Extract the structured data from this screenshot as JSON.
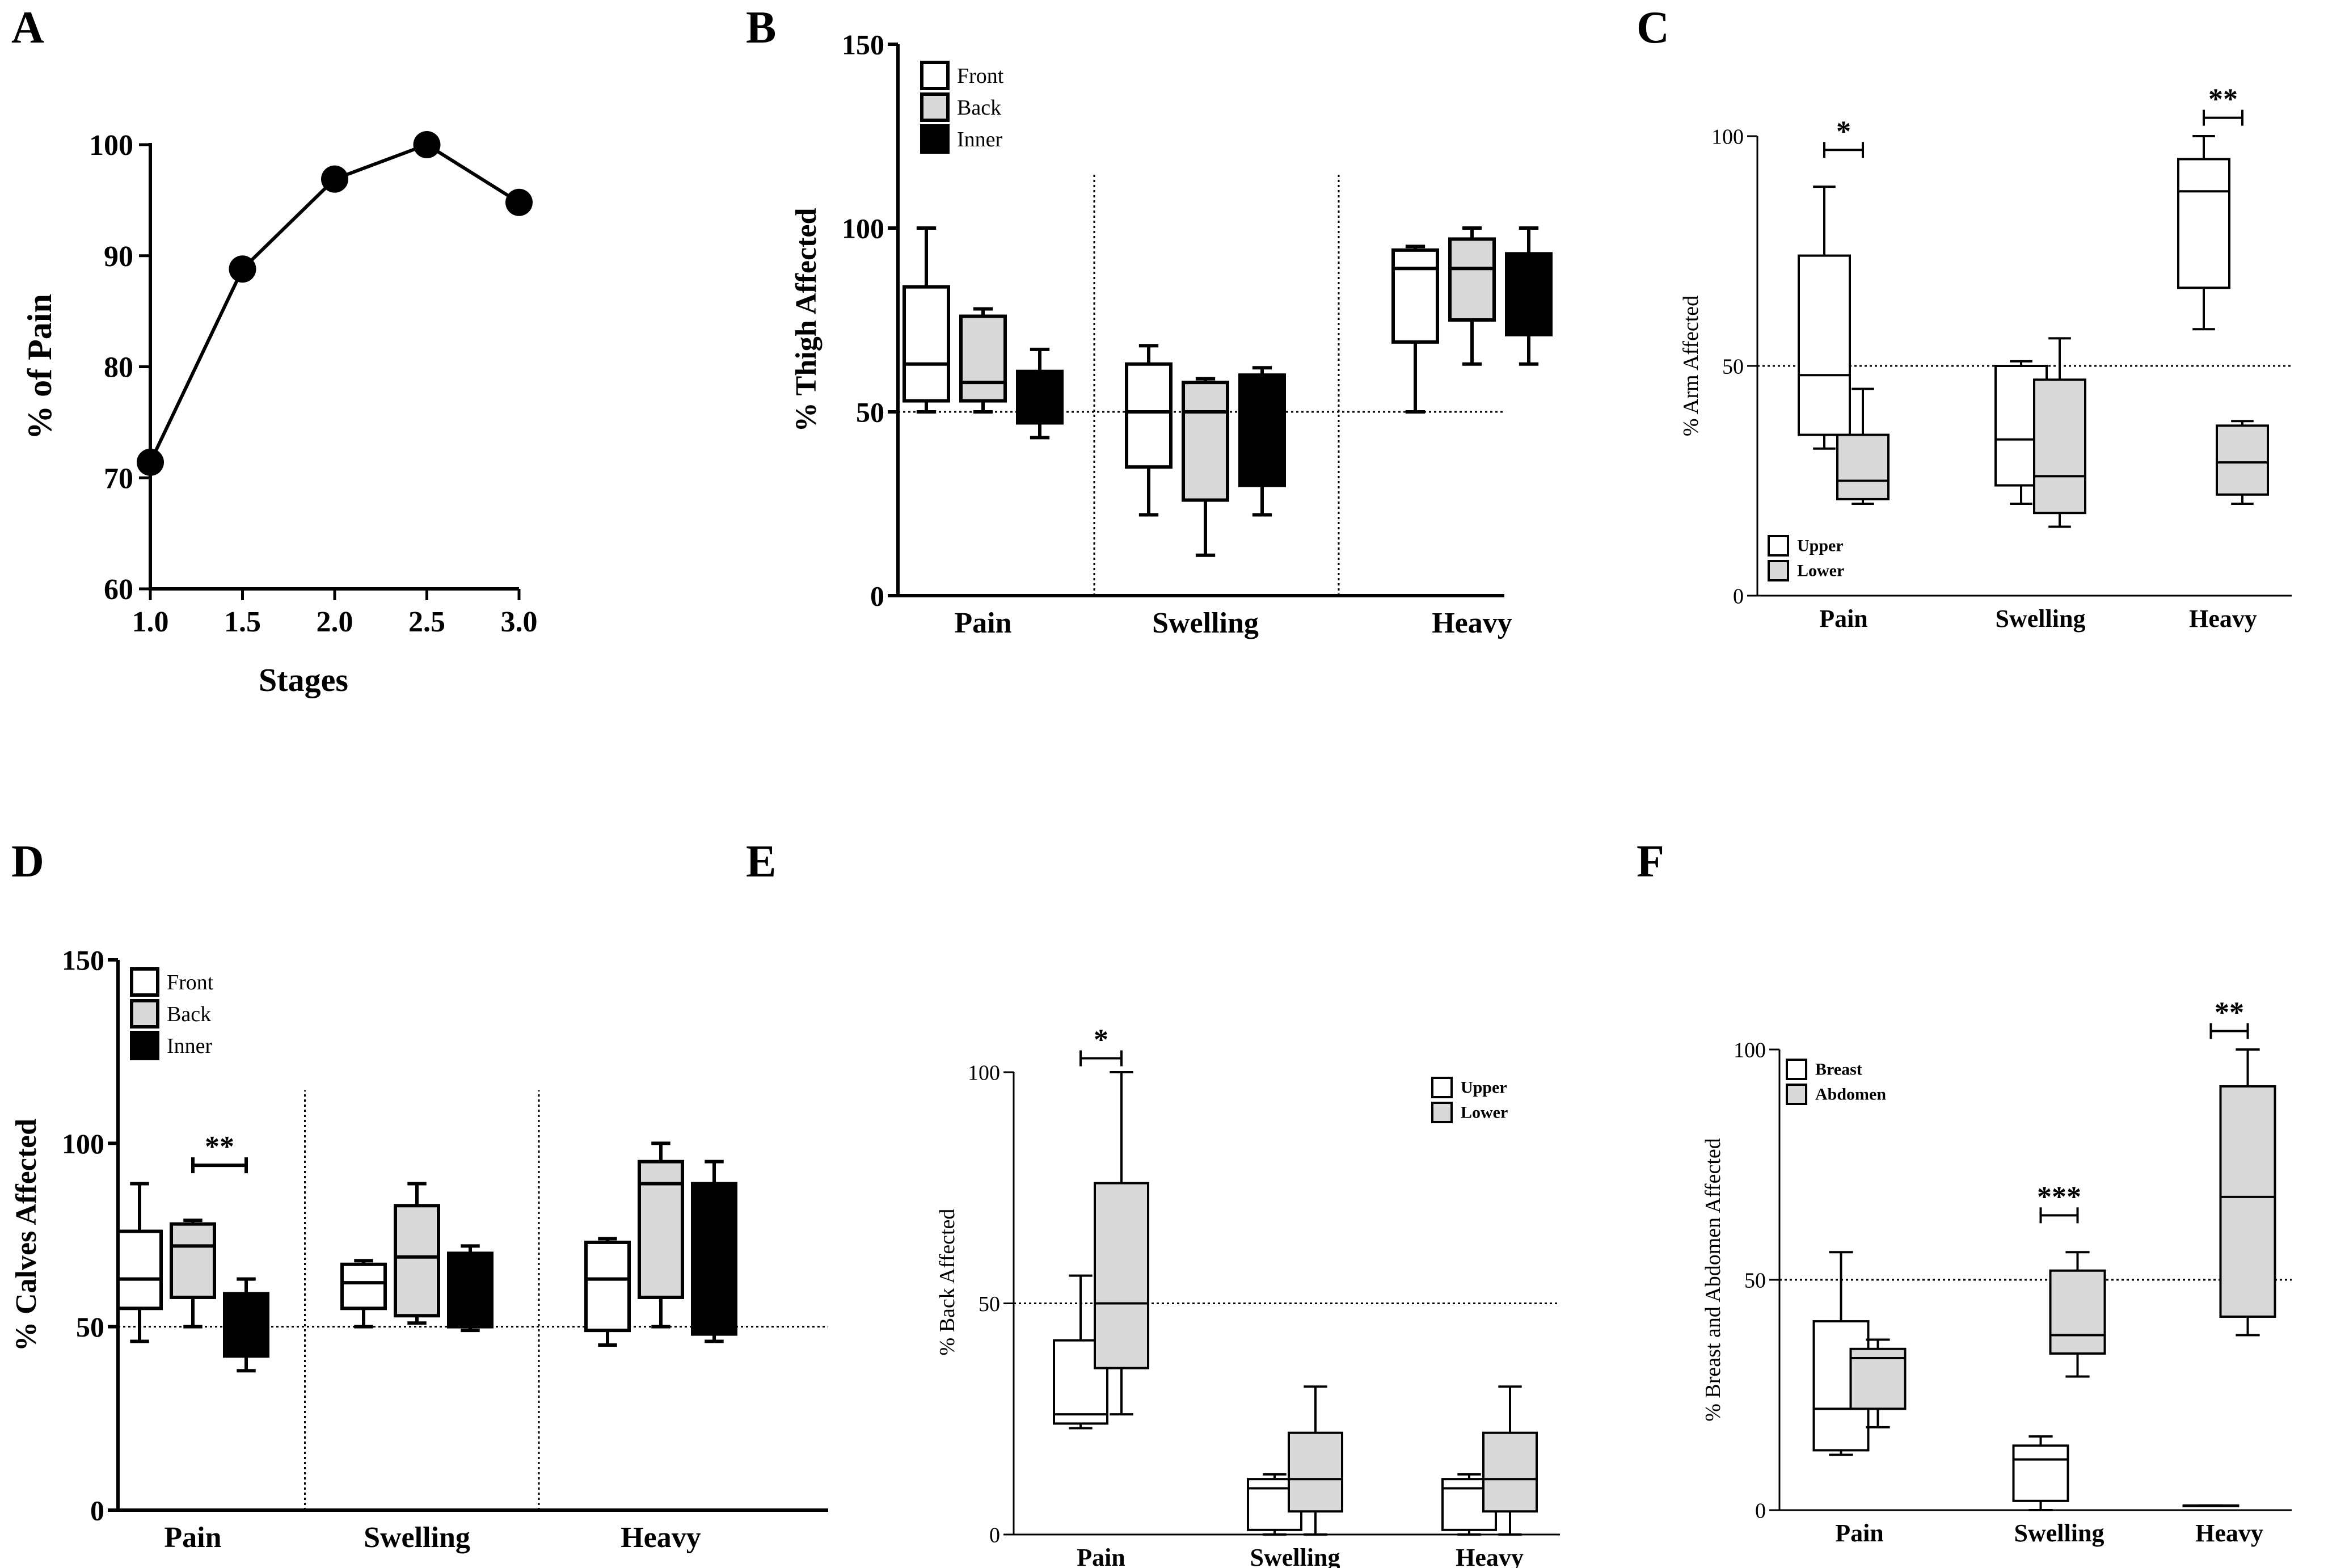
{
  "figure": {
    "chart_data": [
      {
        "panel": "A",
        "type": "line",
        "xlabel": "Stages",
        "ylabel": "% of Pain",
        "xlim": [
          1.0,
          3.0
        ],
        "ylim": [
          60,
          100
        ],
        "xticks": [
          1.0,
          1.5,
          2.0,
          2.5,
          3.0
        ],
        "xtick_labels": [
          "1.0",
          "1.5",
          "2.0",
          "2.5",
          "3.0"
        ],
        "yticks": [
          60,
          70,
          80,
          90,
          100
        ],
        "ytick_labels": [
          "60",
          "70",
          "80",
          "90",
          "100"
        ],
        "x": [
          1.0,
          1.5,
          2.0,
          2.5,
          3.0
        ],
        "y": [
          71.4,
          88.8,
          96.9,
          100,
          94.8
        ]
      },
      {
        "panel": "B",
        "type": "box",
        "ylabel": "% Thigh Affected",
        "ylim": [
          0,
          150
        ],
        "yticks": [
          0,
          50,
          100,
          150
        ],
        "ytick_labels": [
          "0",
          "50",
          "100",
          "150"
        ],
        "categories": [
          "Pain",
          "Swelling",
          "Heavy"
        ],
        "legend": {
          "position": "top-left",
          "entries": [
            {
              "label": "Front",
              "color": "#ffffff"
            },
            {
              "label": "Back",
              "color": "#d9d9d9"
            },
            {
              "label": "Inner",
              "color": "#000000"
            }
          ]
        },
        "reference_line": 50,
        "series": [
          {
            "name": "Front",
            "color": "#ffffff",
            "boxes": [
              [
                50,
                53,
                63,
                84,
                100
              ],
              [
                22,
                35,
                50,
                63,
                68
              ],
              [
                50,
                69,
                89,
                94,
                95
              ]
            ]
          },
          {
            "name": "Back",
            "color": "#d9d9d9",
            "boxes": [
              [
                50,
                53,
                58,
                76,
                78
              ],
              [
                11,
                26,
                50,
                58,
                59
              ],
              [
                63,
                75,
                89,
                97,
                100
              ]
            ]
          },
          {
            "name": "Inner",
            "color": "#000000",
            "boxes": [
              [
                43,
                47,
                51,
                61,
                67
              ],
              [
                22,
                30,
                35,
                60,
                62
              ],
              [
                63,
                71,
                83,
                93,
                100
              ]
            ]
          }
        ],
        "significance": []
      },
      {
        "panel": "C",
        "type": "box",
        "ylabel": "% Arm Affected",
        "ylim": [
          0,
          100
        ],
        "yticks": [
          0,
          50,
          100
        ],
        "ytick_labels": [
          "0",
          "50",
          "100"
        ],
        "categories": [
          "Pain",
          "Swelling",
          "Heavy"
        ],
        "legend": {
          "position": "bottom-left",
          "entries": [
            {
              "label": "Upper",
              "color": "#ffffff"
            },
            {
              "label": "Lower",
              "color": "#d9d9d9"
            }
          ]
        },
        "reference_line": 50,
        "series": [
          {
            "name": "Upper",
            "color": "#ffffff",
            "boxes": [
              [
                32,
                35,
                48,
                74,
                89
              ],
              [
                20,
                24,
                34,
                50,
                51
              ],
              [
                58,
                67,
                88,
                95,
                100
              ]
            ]
          },
          {
            "name": "Lower",
            "color": "#d9d9d9",
            "boxes": [
              [
                20,
                21,
                25,
                35,
                45
              ],
              [
                15,
                18,
                26,
                47,
                56
              ],
              [
                20,
                22,
                29,
                37,
                38
              ]
            ]
          }
        ],
        "significance": [
          {
            "category": 0,
            "label": "*",
            "y": 97
          },
          {
            "category": 2,
            "label": "**",
            "y": 104
          }
        ]
      },
      {
        "panel": "D",
        "type": "box",
        "ylabel": "% Calves Affected",
        "ylim": [
          0,
          150
        ],
        "yticks": [
          0,
          50,
          100,
          150
        ],
        "ytick_labels": [
          "0",
          "50",
          "100",
          "150"
        ],
        "categories": [
          "Pain",
          "Swelling",
          "Heavy"
        ],
        "legend": {
          "position": "top-left",
          "entries": [
            {
              "label": "Front",
              "color": "#ffffff"
            },
            {
              "label": "Back",
              "color": "#d9d9d9"
            },
            {
              "label": "Inner",
              "color": "#000000"
            }
          ]
        },
        "reference_line": 50,
        "series": [
          {
            "name": "Front",
            "color": "#ffffff",
            "boxes": [
              [
                46,
                55,
                63,
                76,
                89
              ],
              [
                50,
                55,
                62,
                67,
                68
              ],
              [
                45,
                49,
                63,
                73,
                74
              ]
            ]
          },
          {
            "name": "Back",
            "color": "#d9d9d9",
            "boxes": [
              [
                50,
                58,
                72,
                78,
                79
              ],
              [
                51,
                53,
                69,
                83,
                89
              ],
              [
                50,
                58,
                89,
                95,
                100
              ]
            ]
          },
          {
            "name": "Inner",
            "color": "#000000",
            "boxes": [
              [
                38,
                42,
                51,
                59,
                63
              ],
              [
                49,
                50,
                59,
                70,
                72
              ],
              [
                46,
                48,
                77,
                89,
                95
              ]
            ]
          }
        ],
        "significance": [
          {
            "category": 0,
            "between": [
              1,
              2
            ],
            "label": "**",
            "y": 94
          }
        ]
      },
      {
        "panel": "E",
        "type": "box",
        "ylabel": "% Back Affected",
        "ylim": [
          0,
          100
        ],
        "yticks": [
          0,
          50,
          100
        ],
        "ytick_labels": [
          "0",
          "50",
          "100"
        ],
        "categories": [
          "Pain",
          "Swelling",
          "Heavy"
        ],
        "legend": {
          "position": "top-right",
          "entries": [
            {
              "label": "Upper",
              "color": "#ffffff"
            },
            {
              "label": "Lower",
              "color": "#d9d9d9"
            }
          ]
        },
        "reference_line": 50,
        "series": [
          {
            "name": "Upper",
            "color": "#ffffff",
            "boxes": [
              [
                23,
                24,
                26,
                42,
                56
              ],
              [
                0,
                1,
                10,
                12,
                13
              ],
              [
                0,
                1,
                10,
                12,
                13
              ]
            ]
          },
          {
            "name": "Lower",
            "color": "#d9d9d9",
            "boxes": [
              [
                26,
                36,
                50,
                76,
                100
              ],
              [
                0,
                5,
                12,
                22,
                32
              ],
              [
                0,
                5,
                12,
                22,
                32
              ]
            ]
          }
        ],
        "significance": [
          {
            "category": 0,
            "label": "*",
            "y": 103
          }
        ]
      },
      {
        "panel": "F",
        "type": "box",
        "ylabel": "% Breast and Abdomen Affected",
        "ylim": [
          0,
          100
        ],
        "yticks": [
          0,
          50,
          100
        ],
        "ytick_labels": [
          "0",
          "50",
          "100"
        ],
        "categories": [
          "Pain",
          "Swelling",
          "Heavy"
        ],
        "legend": {
          "position": "top-left",
          "entries": [
            {
              "label": "Breast",
              "color": "#ffffff"
            },
            {
              "label": "Abdomen",
              "color": "#d9d9d9"
            }
          ]
        },
        "reference_line": 50,
        "series": [
          {
            "name": "Breast",
            "color": "#ffffff",
            "boxes": [
              [
                12,
                13,
                22,
                41,
                56
              ],
              [
                0,
                2,
                11,
                14,
                16
              ],
              [
                1,
                1,
                1,
                1,
                1
              ]
            ]
          },
          {
            "name": "Abdomen",
            "color": "#d9d9d9",
            "boxes": [
              [
                18,
                22,
                33,
                35,
                37
              ],
              [
                29,
                34,
                38,
                52,
                56
              ],
              [
                38,
                42,
                68,
                92,
                100
              ]
            ]
          }
        ],
        "significance": [
          {
            "category": 1,
            "label": "***",
            "y": 64
          },
          {
            "category": 2,
            "label": "**",
            "y": 104
          }
        ]
      }
    ]
  }
}
